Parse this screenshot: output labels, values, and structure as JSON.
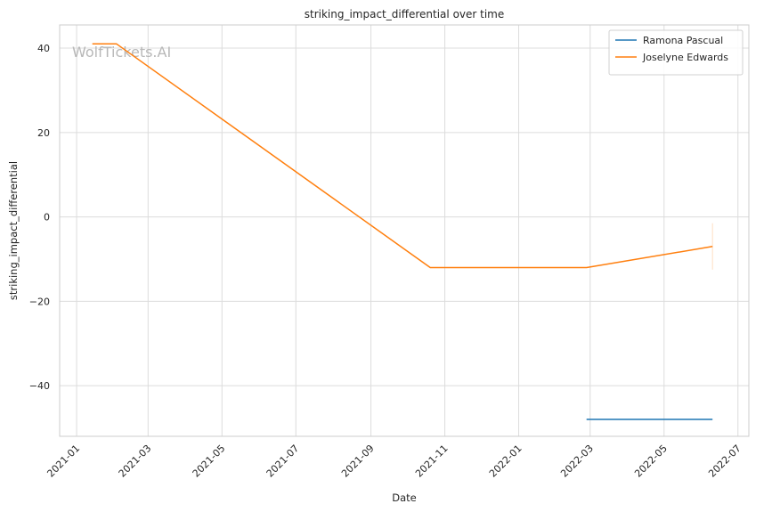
{
  "chart_data": {
    "type": "line",
    "title": "striking_impact_differential over time",
    "xlabel": "Date",
    "ylabel": "striking_impact_differential",
    "x_ticks": [
      "2021-01",
      "2021-03",
      "2021-05",
      "2021-07",
      "2021-09",
      "2021-11",
      "2022-01",
      "2022-03",
      "2022-05",
      "2022-07"
    ],
    "y_ticks": [
      -40,
      -20,
      0,
      20,
      40
    ],
    "xlim": [
      "2020-12-18",
      "2022-07-10"
    ],
    "ylim": [
      -52,
      45.5
    ],
    "grid": true,
    "legend_position": "top-right",
    "watermark": "WolfTickets.AI",
    "series": [
      {
        "name": "Ramona Pascual",
        "color": "#1f77b4",
        "points": [
          {
            "x": "2022-02-26",
            "y": -48
          },
          {
            "x": "2022-06-10",
            "y": -48
          }
        ]
      },
      {
        "name": "Joselyne Edwards",
        "color": "#ff7f0e",
        "points": [
          {
            "x": "2021-01-14",
            "y": 41
          },
          {
            "x": "2021-02-03",
            "y": 41
          },
          {
            "x": "2021-10-20",
            "y": -12
          },
          {
            "x": "2022-02-26",
            "y": -12
          },
          {
            "x": "2022-06-10",
            "y": -7
          }
        ],
        "error_bar": {
          "x": "2022-06-10",
          "low": -12.5,
          "high": -1.5
        }
      }
    ]
  }
}
